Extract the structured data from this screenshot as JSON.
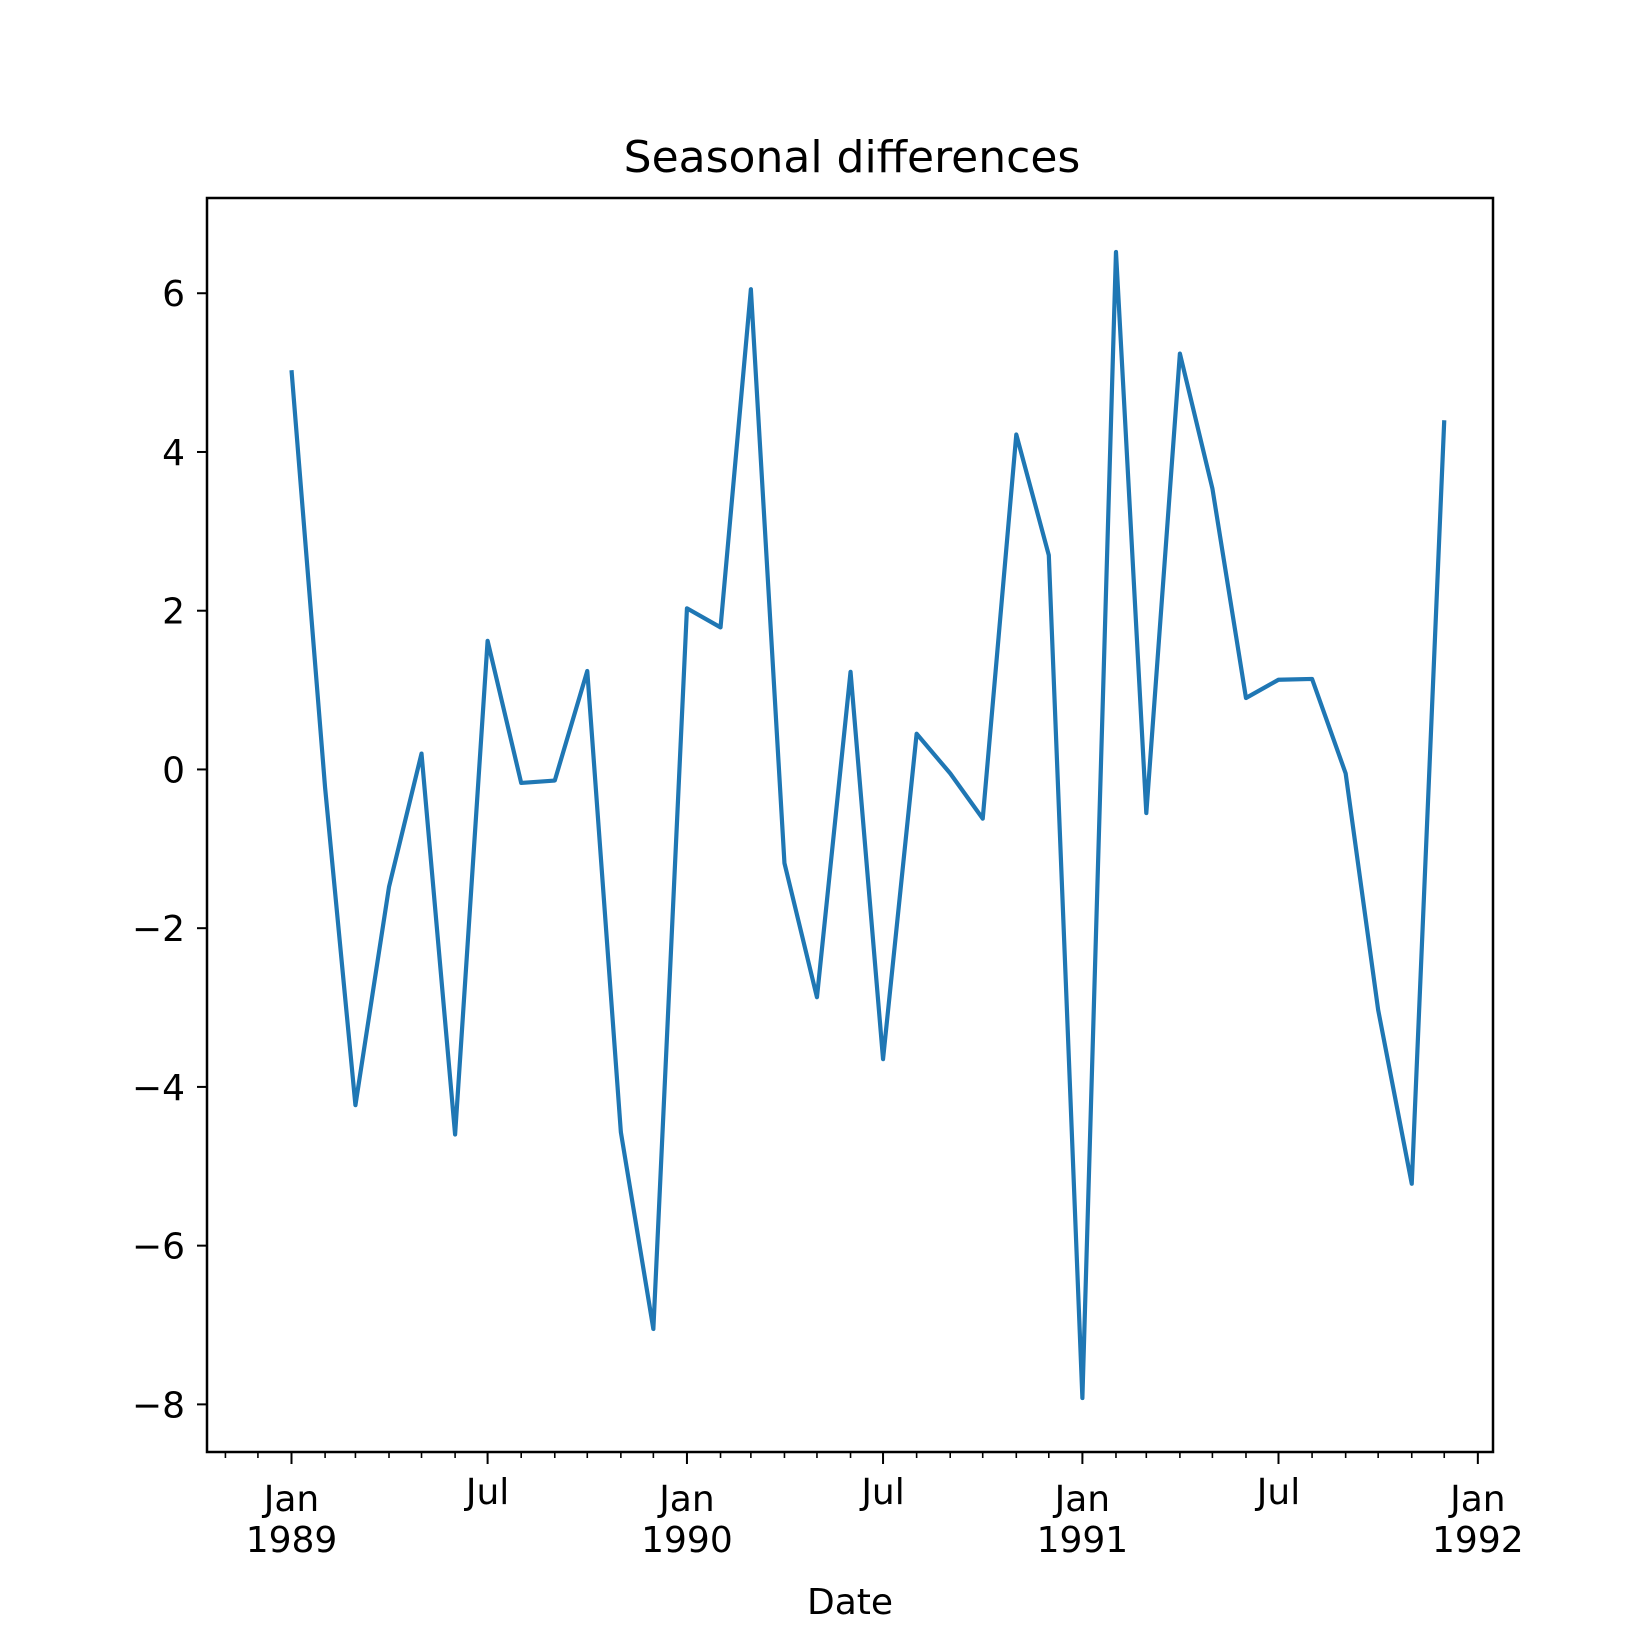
{
  "chart_data": {
    "type": "line",
    "title": "Seasonal differences",
    "xlabel": "Date",
    "ylabel": "",
    "xlim": [
      "1988-10-15",
      "1992-01-15"
    ],
    "ylim": [
      -8.6,
      7.2
    ],
    "yticks": [
      -8,
      -6,
      -4,
      -2,
      0,
      2,
      4,
      6
    ],
    "ytick_labels": [
      "−8",
      "−6",
      "−4",
      "−2",
      "0",
      "2",
      "4",
      "6"
    ],
    "xticks_major": [
      {
        "date": "1989-01-01",
        "label": [
          "Jan",
          "1989"
        ]
      },
      {
        "date": "1989-07-01",
        "label": [
          "Jul"
        ]
      },
      {
        "date": "1990-01-01",
        "label": [
          "Jan",
          "1990"
        ]
      },
      {
        "date": "1990-07-01",
        "label": [
          "Jul"
        ]
      },
      {
        "date": "1991-01-01",
        "label": [
          "Jan",
          "1991"
        ]
      },
      {
        "date": "1991-07-01",
        "label": [
          "Jul"
        ]
      },
      {
        "date": "1992-01-01",
        "label": [
          "Jan",
          "1992"
        ]
      }
    ],
    "line_color": "#1f77b4",
    "grid": false,
    "series": [
      {
        "x": [
          "1989-01-01",
          "1989-02-01",
          "1989-03-01",
          "1989-04-01",
          "1989-05-01",
          "1989-06-01",
          "1989-07-01",
          "1989-08-01",
          "1989-09-01",
          "1989-10-01",
          "1989-11-01",
          "1989-12-01",
          "1990-01-01",
          "1990-02-01",
          "1990-03-01",
          "1990-04-01",
          "1990-05-01",
          "1990-06-01",
          "1990-07-01",
          "1990-08-01",
          "1990-09-01",
          "1990-10-01",
          "1990-11-01",
          "1990-12-01",
          "1991-01-01",
          "1991-02-01",
          "1991-03-01",
          "1991-04-01",
          "1991-05-01",
          "1991-06-01",
          "1991-07-01",
          "1991-08-01",
          "1991-09-01",
          "1991-10-01",
          "1991-11-01",
          "1991-12-01"
        ],
        "values": [
          5.03,
          -0.23,
          -4.23,
          -1.48,
          0.2,
          -4.6,
          1.62,
          -0.17,
          -0.14,
          1.24,
          -4.57,
          -7.05,
          2.03,
          1.79,
          6.05,
          -1.18,
          -2.87,
          1.23,
          -3.65,
          0.45,
          -0.05,
          -0.62,
          4.22,
          2.7,
          -7.92,
          6.52,
          -0.55,
          5.24,
          3.54,
          0.9,
          1.13,
          1.14,
          -0.05,
          -3.03,
          -5.22,
          4.4
        ]
      }
    ]
  }
}
